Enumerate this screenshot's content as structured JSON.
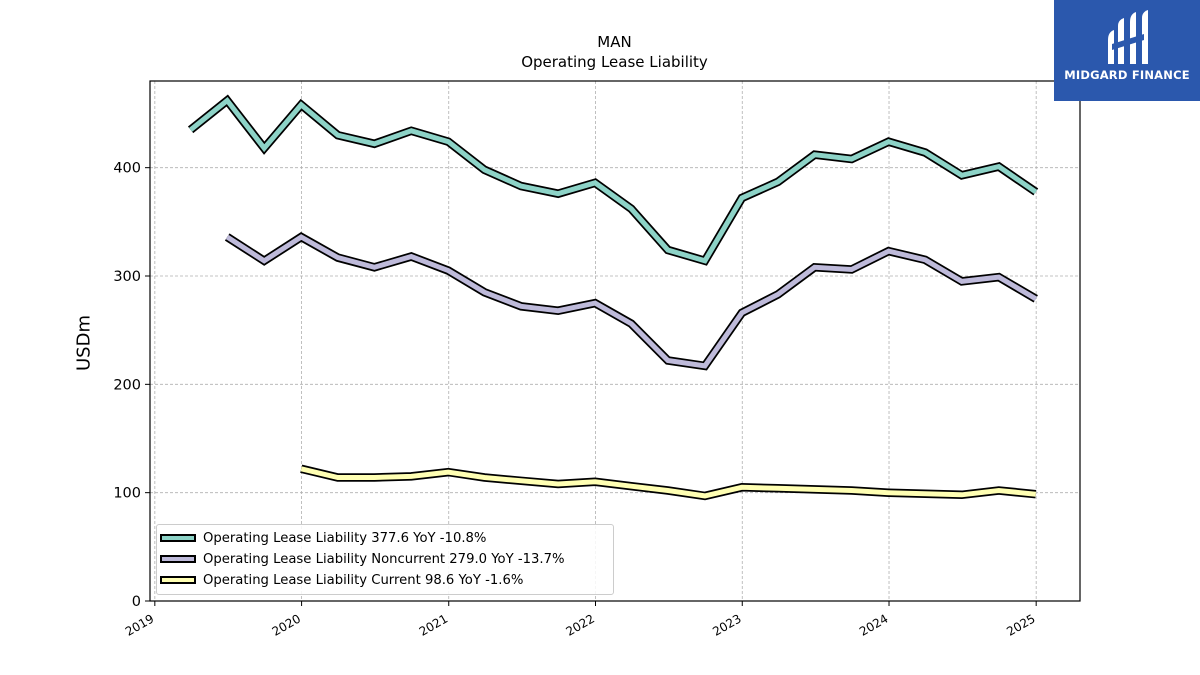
{
  "chart_data": {
    "type": "line",
    "title": "MAN",
    "subtitle": "Operating Lease Liability",
    "ylabel": "USDm",
    "ylim": [
      0,
      480
    ],
    "yticks": [
      0,
      100,
      200,
      300,
      400
    ],
    "xlim": [
      "2018-12-20",
      "2025-04-20"
    ],
    "xticks": [
      "2019",
      "2020",
      "2021",
      "2022",
      "2023",
      "2024",
      "2025"
    ],
    "grid": true,
    "legend_position": "lower-left",
    "series": [
      {
        "name": "Operating Lease Liability",
        "color": "#8dd3c7",
        "legend": "Operating Lease Liability  377.6 YoY -10.8%",
        "x": [
          "2019-03-31",
          "2019-06-30",
          "2019-09-30",
          "2019-12-31",
          "2020-03-31",
          "2020-06-30",
          "2020-09-30",
          "2020-12-31",
          "2021-03-31",
          "2021-06-30",
          "2021-09-30",
          "2021-12-31",
          "2022-03-31",
          "2022-06-30",
          "2022-09-30",
          "2022-12-31",
          "2023-03-31",
          "2023-06-30",
          "2023-09-30",
          "2023-12-31",
          "2024-03-31",
          "2024-06-30",
          "2024-09-30",
          "2024-12-31"
        ],
        "values": [
          435,
          462,
          418,
          458,
          430,
          422,
          434,
          424,
          398,
          383,
          376,
          386,
          362,
          324,
          314,
          372,
          387,
          412,
          408,
          424,
          414,
          393,
          401,
          377.6
        ]
      },
      {
        "name": "Operating Lease Liability Noncurrent",
        "color": "#bebada",
        "legend": "Operating Lease Liability Noncurrent  279.0 YoY -13.7%",
        "x": [
          "2019-06-30",
          "2019-09-30",
          "2019-12-31",
          "2020-03-31",
          "2020-06-30",
          "2020-09-30",
          "2020-12-31",
          "2021-03-31",
          "2021-06-30",
          "2021-09-30",
          "2021-12-31",
          "2022-03-31",
          "2022-06-30",
          "2022-09-30",
          "2022-12-31",
          "2023-03-31",
          "2023-06-30",
          "2023-09-30",
          "2023-12-31",
          "2024-03-31",
          "2024-06-30",
          "2024-09-30",
          "2024-12-31"
        ],
        "values": [
          336,
          314,
          336,
          317,
          308,
          318,
          305,
          285,
          272,
          268,
          275,
          256,
          222,
          217,
          266,
          283,
          308,
          306,
          323,
          315,
          295,
          299,
          279.0
        ]
      },
      {
        "name": "Operating Lease Liability Current",
        "color": "#ffffb3",
        "legend": "Operating Lease Liability Current  98.6 YoY -1.6%",
        "x": [
          "2019-12-31",
          "2020-03-31",
          "2020-06-30",
          "2020-09-30",
          "2020-12-31",
          "2021-03-31",
          "2021-06-30",
          "2021-09-30",
          "2021-12-31",
          "2022-03-31",
          "2022-06-30",
          "2022-09-30",
          "2022-12-31",
          "2023-03-31",
          "2023-06-30",
          "2023-09-30",
          "2023-12-31",
          "2024-03-31",
          "2024-06-30",
          "2024-09-30",
          "2024-12-31"
        ],
        "values": [
          122,
          114,
          114,
          115,
          119,
          114,
          111,
          108,
          110,
          106,
          102,
          97,
          105,
          104,
          103,
          102,
          100,
          99,
          98,
          102,
          98.6
        ]
      }
    ]
  },
  "logo": {
    "name": "MIDGARD FINANCE",
    "color": "#2b58ad"
  }
}
